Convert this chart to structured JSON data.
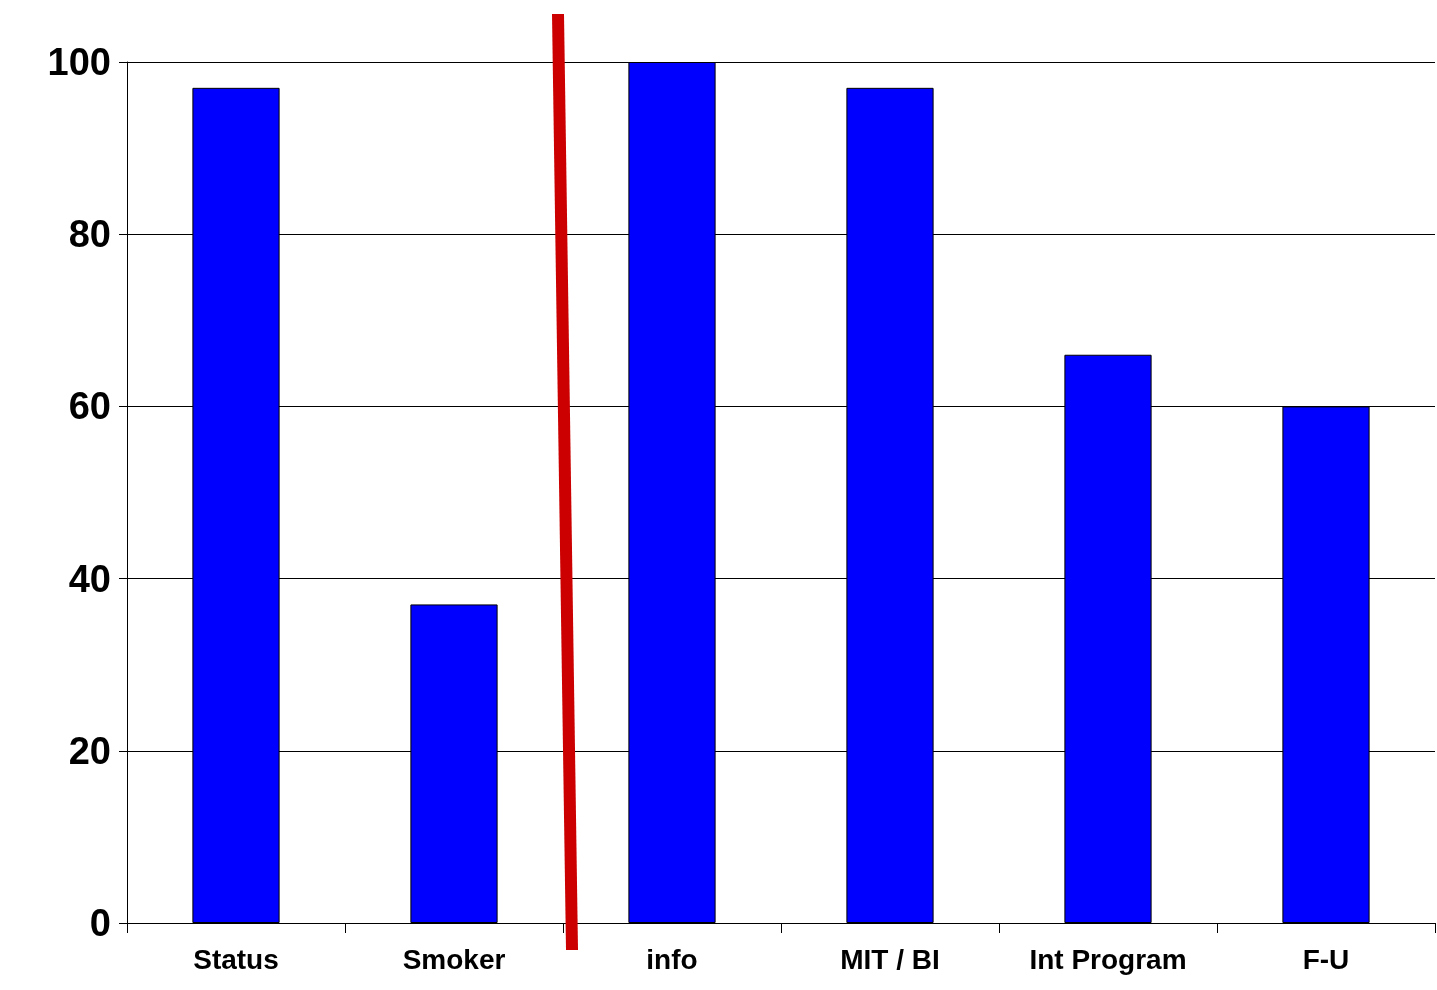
{
  "chart_data": {
    "type": "bar",
    "categories": [
      "Status",
      "Smoker",
      "info",
      "MIT / BI",
      "Int Program",
      "F-U"
    ],
    "values": [
      97,
      37,
      100,
      97,
      66,
      60
    ],
    "colors": [
      "#0000ff",
      "#0000ff",
      "#0000ff",
      "#0000ff",
      "#0000ff",
      "#0000ff"
    ],
    "ylim": [
      0,
      100
    ],
    "yticks": [
      0,
      20,
      40,
      60,
      80,
      100
    ],
    "grid": "y"
  }
}
